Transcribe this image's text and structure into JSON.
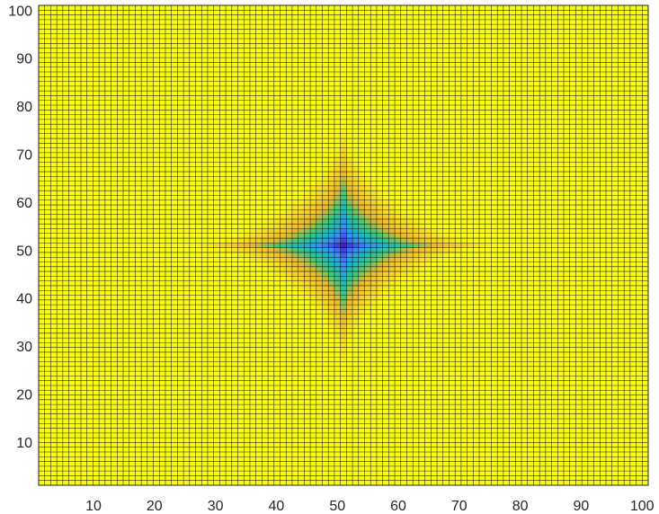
{
  "chart_data": {
    "type": "heatmap",
    "title": "",
    "xlabel": "",
    "ylabel": "",
    "xlim": [
      1,
      101
    ],
    "ylim": [
      1,
      101
    ],
    "grid_size": 101,
    "cell_edges": true,
    "x_ticks": [
      10,
      20,
      30,
      40,
      50,
      60,
      70,
      80,
      90,
      100
    ],
    "y_ticks": [
      10,
      20,
      30,
      40,
      50,
      60,
      70,
      80,
      90,
      100
    ],
    "surface": {
      "shape": "astroid-star",
      "center": [
        51,
        51
      ],
      "radius": 25,
      "exponent": 0.6667,
      "inside_value_range": [
        0,
        1
      ],
      "outside_value": 1
    },
    "colormap": [
      "#3e26a8",
      "#4746eb",
      "#3e8bfe",
      "#1bb6ca",
      "#41c97e",
      "#ecba30",
      "#f8d827",
      "#f9fb15"
    ],
    "edge_color": "#000000"
  }
}
